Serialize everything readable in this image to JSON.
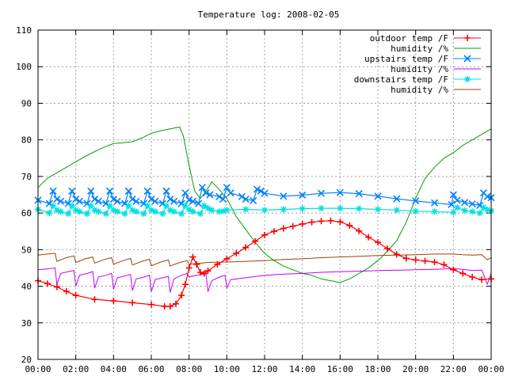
{
  "chart_data": {
    "type": "line",
    "title": "Temperature log: 2008-02-05",
    "xlabel": "",
    "ylabel": "",
    "ylim": [
      20,
      110
    ],
    "xlim": [
      "00:00",
      "24:00"
    ],
    "grid": true,
    "legend_position": "top-right",
    "x_ticks": [
      "00:00",
      "02:00",
      "04:00",
      "06:00",
      "08:00",
      "10:00",
      "12:00",
      "14:00",
      "16:00",
      "18:00",
      "20:00",
      "22:00",
      "00:00"
    ],
    "y_ticks": [
      "20",
      "30",
      "40",
      "50",
      "60",
      "70",
      "80",
      "90",
      "100",
      "110"
    ],
    "series": [
      {
        "name": "outdoor temp /F",
        "color": "#ff0000",
        "marker": "plus",
        "x": [
          0,
          0.5,
          1,
          1.5,
          2,
          3,
          4,
          5,
          6,
          6.7,
          7,
          7.3,
          7.6,
          7.8,
          8.0,
          8.2,
          8.4,
          8.6,
          8.8,
          9,
          9.5,
          10,
          10.5,
          11,
          11.5,
          12,
          12.5,
          13,
          13.5,
          14,
          14.5,
          15,
          15.5,
          16,
          16.5,
          17,
          17.5,
          18,
          18.5,
          19,
          19.5,
          20,
          20.5,
          21,
          21.5,
          22,
          22.5,
          23,
          23.5,
          24
        ],
        "y": [
          41.5,
          40.7,
          39.8,
          38.6,
          37.5,
          36.4,
          36.0,
          35.5,
          35.0,
          34.5,
          34.5,
          35.2,
          37.5,
          40.5,
          45.0,
          48.0,
          46.0,
          43.8,
          43.5,
          44.2,
          46.0,
          47.5,
          49.0,
          50.6,
          52.3,
          54.0,
          55.0,
          55.8,
          56.4,
          57.0,
          57.5,
          57.8,
          57.9,
          57.6,
          56.6,
          55.1,
          53.4,
          52.0,
          50.3,
          48.7,
          47.6,
          47.2,
          46.9,
          46.6,
          45.9,
          44.5,
          43.5,
          42.5,
          41.8,
          42.0
        ]
      },
      {
        "name": "humidity /%",
        "color": "#00a000",
        "marker": "none",
        "x": [
          0,
          0.5,
          1,
          1.5,
          2,
          2.5,
          3,
          3.5,
          4,
          4.5,
          5,
          5.5,
          6,
          6.5,
          7,
          7.5,
          7.7,
          8,
          8.3,
          8.6,
          8.9,
          9.2,
          9.5,
          10,
          10.5,
          11,
          11.5,
          12,
          12.5,
          13,
          13.5,
          14,
          14.5,
          15,
          15.5,
          16,
          16.5,
          17,
          17.5,
          18,
          18.5,
          19,
          19.5,
          20,
          20.5,
          21,
          21.5,
          22,
          22.5,
          23,
          23.5,
          24
        ],
        "y": [
          67,
          69.5,
          71,
          72.5,
          74,
          75.5,
          76.8,
          78,
          79,
          79.2,
          79.5,
          80.5,
          81.8,
          82.5,
          83,
          83.5,
          81,
          73,
          66,
          64,
          66,
          68.5,
          67,
          64,
          59,
          55.5,
          52,
          49,
          47,
          45.5,
          44.5,
          43.5,
          43,
          42,
          41.5,
          41,
          42,
          43.5,
          45,
          47,
          49.5,
          52.5,
          57.5,
          64,
          69.5,
          72.5,
          75,
          76.5,
          78.5,
          80,
          81.5,
          83
        ]
      },
      {
        "name": "upstairs temp /F",
        "color": "#0080ff",
        "marker": "x",
        "x": [
          0,
          0.6,
          0.8,
          1.0,
          1.2,
          1.6,
          1.8,
          2.0,
          2.2,
          2.6,
          2.8,
          3.0,
          3.2,
          3.6,
          3.8,
          4.0,
          4.2,
          4.6,
          4.8,
          5.0,
          5.2,
          5.6,
          5.8,
          6.0,
          6.2,
          6.6,
          6.8,
          7.0,
          7.2,
          7.6,
          7.8,
          8.0,
          8.2,
          8.5,
          8.7,
          8.9,
          9.1,
          9.6,
          9.8,
          10.0,
          10.2,
          10.8,
          11.0,
          11.4,
          11.6,
          11.8,
          12.0,
          13,
          14,
          15,
          16,
          17,
          18,
          19,
          20,
          21,
          21.9,
          22.0,
          22.2,
          22.6,
          23,
          23.4,
          23.6,
          23.8,
          24.0
        ],
        "y": [
          63.5,
          62.6,
          66,
          63.8,
          63.2,
          62.6,
          66,
          63.8,
          63.2,
          62.6,
          66,
          63.8,
          63.2,
          62.6,
          66,
          63.8,
          63.2,
          62.6,
          66,
          63.8,
          63.2,
          62.6,
          66,
          63.8,
          63.2,
          62.6,
          66,
          63.8,
          63.2,
          62.6,
          65.5,
          63.6,
          63.2,
          62.6,
          67,
          65.5,
          65,
          64.5,
          63.8,
          67,
          65.5,
          64.5,
          63.8,
          63.4,
          66.5,
          66,
          65.4,
          64.6,
          64.9,
          65.4,
          65.6,
          65.3,
          64.6,
          63.9,
          63.3,
          62.8,
          62.3,
          65,
          63.5,
          62.9,
          62.5,
          62.1,
          65.5,
          64.5,
          64.2
        ]
      },
      {
        "name": "humidity /%",
        "color": "#c000ff",
        "marker": "none",
        "x": [
          0,
          0.6,
          0.9,
          1.0,
          1.2,
          1.6,
          1.9,
          2.0,
          2.2,
          2.6,
          2.9,
          3.0,
          3.2,
          3.6,
          3.9,
          4.0,
          4.2,
          4.6,
          4.9,
          5.0,
          5.2,
          5.6,
          5.9,
          6.0,
          6.2,
          6.6,
          6.9,
          7.0,
          7.2,
          7.6,
          7.9,
          8.0,
          8.2,
          8.6,
          8.9,
          9.0,
          9.2,
          9.6,
          9.9,
          10.0,
          10.2,
          11,
          12,
          13,
          14,
          15,
          16,
          17,
          18,
          19,
          20,
          21,
          22,
          22.5,
          23,
          23.5,
          23.8,
          24
        ],
        "y": [
          44.5,
          44.8,
          45,
          40.5,
          43.5,
          44,
          44.3,
          40,
          43,
          43.5,
          44,
          39.5,
          42.5,
          43,
          43.5,
          39.2,
          42.3,
          42.8,
          43.2,
          38.8,
          42,
          42.5,
          43,
          38.5,
          41.8,
          42.3,
          42.7,
          38.3,
          42,
          43,
          43.5,
          42.5,
          42.8,
          43.2,
          43.3,
          38.5,
          41.5,
          42.5,
          43,
          39.5,
          41.8,
          42.3,
          43,
          43.3,
          43.5,
          43.8,
          44,
          44.1,
          44.3,
          44.4,
          44.5,
          44.6,
          44.8,
          44.6,
          44.3,
          44.4,
          40.6,
          43.5
        ]
      },
      {
        "name": "downstairs temp /F",
        "color": "#00e0e0",
        "marker": "star",
        "x": [
          0,
          0.6,
          0.8,
          1.0,
          1.2,
          1.6,
          1.8,
          2.0,
          2.2,
          2.6,
          2.8,
          3.0,
          3.2,
          3.6,
          3.8,
          4.0,
          4.2,
          4.6,
          4.8,
          5.0,
          5.2,
          5.6,
          5.8,
          6.0,
          6.2,
          6.6,
          6.8,
          7.0,
          7.2,
          7.6,
          7.8,
          8.0,
          8.2,
          8.6,
          8.8,
          9.0,
          9.2,
          9.6,
          9.8,
          10,
          11,
          12,
          13,
          14,
          15,
          16,
          17,
          18,
          19,
          20,
          21,
          22,
          22.2,
          22.6,
          23,
          23.4,
          23.6,
          23.8,
          24
        ],
        "y": [
          61,
          60,
          62,
          60.8,
          60.4,
          59.8,
          62,
          60.8,
          60.4,
          59.8,
          62,
          60.8,
          60.4,
          59.8,
          62,
          60.8,
          60.4,
          59.8,
          62,
          60.8,
          60.4,
          59.8,
          62,
          60.8,
          60.4,
          59.8,
          62,
          60.8,
          60.4,
          59.8,
          62,
          61,
          60.4,
          59.8,
          62,
          61.3,
          60.8,
          60.4,
          60.5,
          60.8,
          61,
          60.8,
          61,
          61.2,
          61.3,
          61.3,
          61.2,
          61,
          60.8,
          60.5,
          60.4,
          60.2,
          61.5,
          60.7,
          60.4,
          60,
          61.5,
          60.9,
          60.6
        ]
      },
      {
        "name": "humidity /%",
        "color": "#a04000",
        "marker": "none",
        "x": [
          0,
          0.5,
          0.9,
          1.0,
          1.5,
          1.9,
          2.0,
          2.5,
          2.9,
          3.0,
          3.5,
          3.9,
          4.0,
          4.5,
          4.9,
          5.0,
          5.5,
          5.9,
          6.0,
          6.5,
          6.9,
          7.0,
          7.5,
          7.9,
          8.0,
          9,
          10,
          11,
          12,
          13,
          14,
          15,
          16,
          17,
          18,
          19,
          20,
          21,
          22,
          22.5,
          23,
          23.5,
          23.8,
          24
        ],
        "y": [
          48.5,
          48.8,
          49,
          46.8,
          47.8,
          48.3,
          46.5,
          47.5,
          48,
          46.3,
          47.3,
          47.8,
          46,
          47,
          47.6,
          45.8,
          46.8,
          47.4,
          45.6,
          46.6,
          47.2,
          45.5,
          46.5,
          47,
          46,
          46.5,
          46.6,
          46.8,
          47,
          47.3,
          47.5,
          47.8,
          48,
          48.2,
          48.4,
          48.5,
          48.6,
          48.8,
          48.8,
          48.6,
          48.5,
          48.6,
          47.2,
          47.8
        ]
      }
    ]
  }
}
